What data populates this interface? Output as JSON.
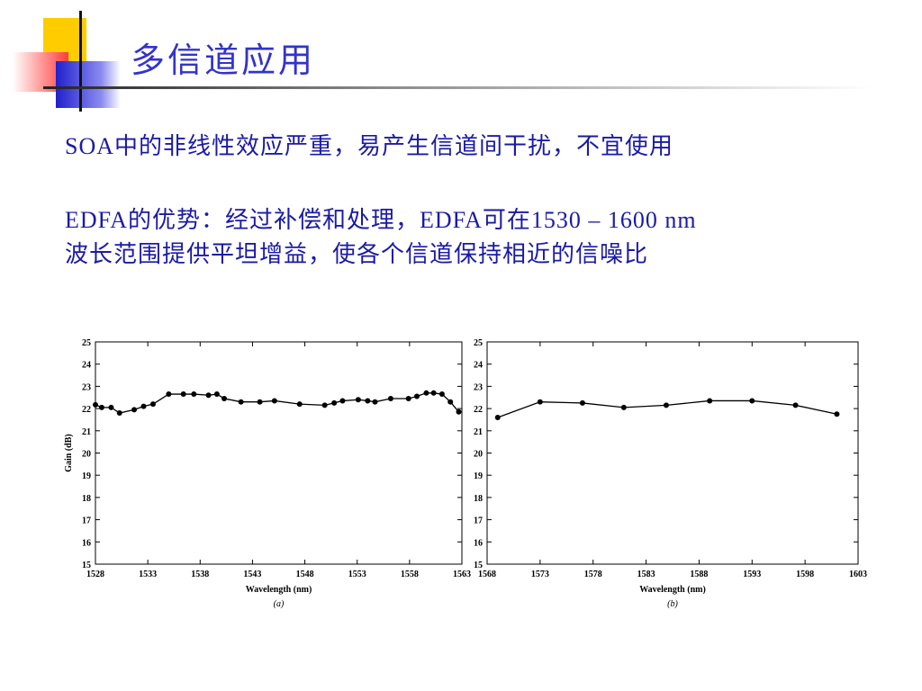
{
  "header": {
    "title": "多信道应用"
  },
  "body": {
    "paragraphs": [
      [
        "SOA中的非线性效应严重，易产生信道间干扰，不宜使用"
      ],
      [
        "EDFA的优势：经过补偿和处理，EDFA可在1530 – 1600 nm",
        "波长范围提供平坦增益，使各个信道保持相近的信噪比"
      ]
    ]
  },
  "chart_data": [
    {
      "type": "line",
      "caption": "(a)",
      "x_label": "Wavelength (nm)",
      "y_label": "Gain (dB)",
      "color": "#000000",
      "x": [
        1528,
        1528.6,
        1529.5,
        1530.3,
        1531.7,
        1532.6,
        1533.5,
        1535,
        1536.4,
        1537.4,
        1538.8,
        1539.6,
        1540.3,
        1541.9,
        1543.7,
        1545.1,
        1547.5,
        1549.9,
        1550.8,
        1551.6,
        1553.1,
        1554,
        1554.7,
        1556.2,
        1557.9,
        1558.7,
        1559.6,
        1560.3,
        1561.1,
        1561.9,
        1562.7
      ],
      "values": [
        22.17,
        22.05,
        22.05,
        21.8,
        21.95,
        22.1,
        22.2,
        22.65,
        22.65,
        22.65,
        22.6,
        22.65,
        22.45,
        22.3,
        22.3,
        22.35,
        22.2,
        22.15,
        22.25,
        22.35,
        22.4,
        22.35,
        22.3,
        22.45,
        22.45,
        22.55,
        22.7,
        22.7,
        22.65,
        22.3,
        21.85
      ],
      "xlim": [
        1528,
        1563
      ],
      "xticks": [
        1528,
        1533,
        1538,
        1543,
        1548,
        1553,
        1558,
        1563
      ],
      "ylim": [
        15,
        25
      ],
      "yticks": [
        15,
        16,
        17,
        18,
        19,
        20,
        21,
        22,
        23,
        24,
        25
      ]
    },
    {
      "type": "line",
      "caption": "(b)",
      "x_label": "Wavelength (nm)",
      "color": "#000000",
      "x": [
        1569,
        1573,
        1577,
        1580.9,
        1584.9,
        1589,
        1593,
        1597.1,
        1601
      ],
      "values": [
        21.6,
        22.3,
        22.25,
        22.05,
        22.15,
        22.35,
        22.35,
        22.15,
        21.75
      ],
      "xlim": [
        1568,
        1603
      ],
      "xticks": [
        1568,
        1573,
        1578,
        1583,
        1588,
        1593,
        1598,
        1603
      ],
      "ylim": [
        15,
        25
      ],
      "yticks": [
        15,
        16,
        17,
        18,
        19,
        20,
        21,
        22,
        23,
        24,
        25
      ]
    }
  ]
}
